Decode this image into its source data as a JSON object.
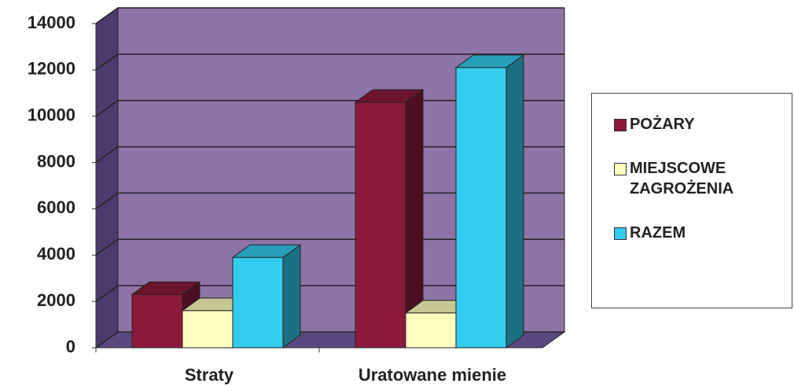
{
  "chart_data": {
    "type": "bar3d",
    "categories": [
      "Straty",
      "Uratowane mienie"
    ],
    "series": [
      {
        "name": "POŻARY",
        "color": "#8b1a3a",
        "values": [
          2300,
          10600
        ]
      },
      {
        "name": "MIEJSCOWE ZAGROŻENIA",
        "color": "#ffffc0",
        "values": [
          1600,
          1500
        ]
      },
      {
        "name": "RAZEM",
        "color": "#33ccee",
        "values": [
          3900,
          12100
        ]
      }
    ],
    "ylim": [
      0,
      14000
    ],
    "yticks": [
      0,
      2000,
      4000,
      6000,
      8000,
      10000,
      12000,
      14000
    ],
    "grid": true,
    "legend": "right"
  }
}
